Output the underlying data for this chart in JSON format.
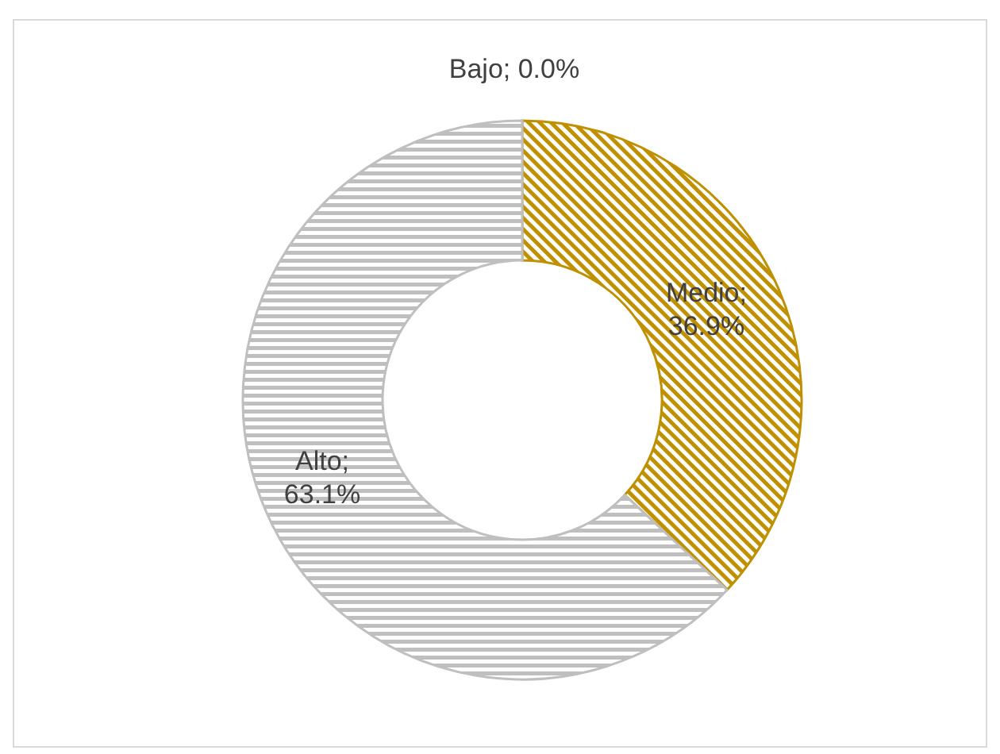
{
  "chart_data": {
    "type": "donut",
    "categories": [
      "Bajo",
      "Medio",
      "Alto"
    ],
    "values": [
      0.0,
      36.9,
      63.1
    ],
    "value_labels": [
      "; 0.0%",
      "; 36.9%",
      "; 63.1%"
    ],
    "colors": [
      "#7f7f7f",
      "#bf9000",
      "#bfbfbf"
    ]
  }
}
